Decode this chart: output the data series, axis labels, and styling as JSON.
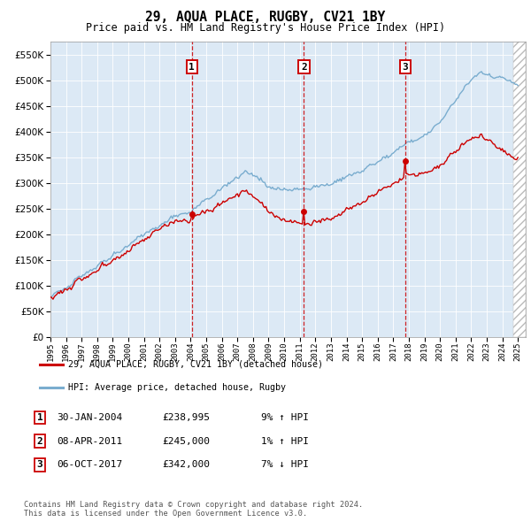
{
  "title": "29, AQUA PLACE, RUGBY, CV21 1BY",
  "subtitle": "Price paid vs. HM Land Registry's House Price Index (HPI)",
  "plot_bg_color": "#dce9f5",
  "ylim": [
    0,
    575000
  ],
  "yticks": [
    0,
    50000,
    100000,
    150000,
    200000,
    250000,
    300000,
    350000,
    400000,
    450000,
    500000,
    550000
  ],
  "sale_dates": [
    2004.08,
    2011.27,
    2017.76
  ],
  "sale_prices": [
    238995,
    245000,
    342000
  ],
  "sale_labels": [
    "1",
    "2",
    "3"
  ],
  "hpi_label": "HPI: Average price, detached house, Rugby",
  "property_label": "29, AQUA PLACE, RUGBY, CV21 1BY (detached house)",
  "red_color": "#cc0000",
  "blue_color": "#7aadcf",
  "dashed_color": "#cc0000",
  "table_rows": [
    [
      "1",
      "30-JAN-2004",
      "£238,995",
      "9% ↑ HPI"
    ],
    [
      "2",
      "08-APR-2011",
      "£245,000",
      "1% ↑ HPI"
    ],
    [
      "3",
      "06-OCT-2017",
      "£342,000",
      "7% ↓ HPI"
    ]
  ],
  "footnote": "Contains HM Land Registry data © Crown copyright and database right 2024.\nThis data is licensed under the Open Government Licence v3.0.",
  "xmin": 1995.0,
  "xmax": 2025.5,
  "hpi_seed": 101,
  "prop_seed": 202
}
